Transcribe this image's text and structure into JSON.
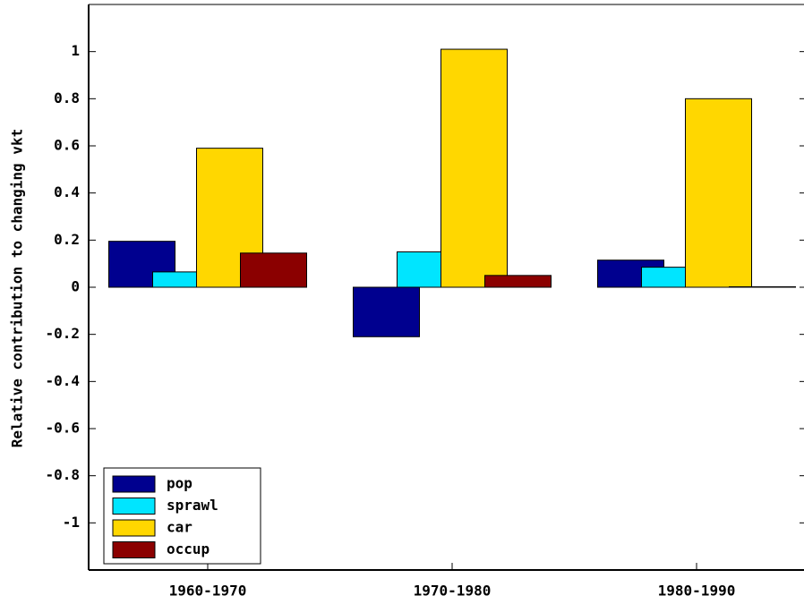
{
  "chart_data": {
    "type": "bar",
    "y_label": "Relative contribution to changing vkt",
    "categories": [
      "1960-1970",
      "1970-1980",
      "1980-1990"
    ],
    "series": [
      {
        "name": "pop",
        "color": "#00008f",
        "values": [
          0.195,
          -0.21,
          0.115
        ]
      },
      {
        "name": "sprawl",
        "color": "#00e5ff",
        "values": [
          0.065,
          0.15,
          0.085
        ]
      },
      {
        "name": "car",
        "color": "#ffd700",
        "values": [
          0.59,
          1.01,
          0.8
        ]
      },
      {
        "name": "occup",
        "color": "#8b0000",
        "values": [
          0.145,
          0.05,
          0.002
        ]
      }
    ],
    "ylim": [
      -1.2,
      1.2
    ],
    "yticks": [
      -1,
      -0.8,
      -0.6,
      -0.4,
      -0.2,
      0,
      0.2,
      0.4,
      0.6,
      0.8,
      1
    ],
    "grid": false,
    "legend": "lower left"
  }
}
